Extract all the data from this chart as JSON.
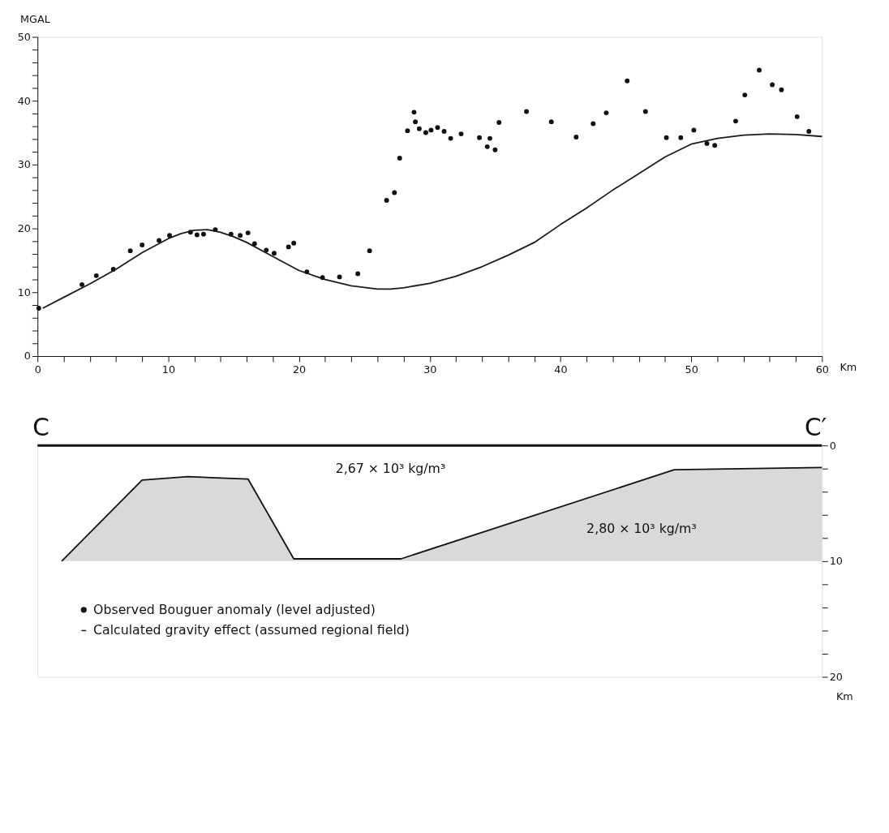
{
  "chart_data": [
    {
      "type": "scatter",
      "ylabel": "MGAL",
      "xlabel": "Km",
      "xlim": [
        0,
        60
      ],
      "xticks": [
        0,
        {
          "value": 2,
          "label": null
        },
        {
          "value": 4,
          "label": null
        },
        {
          "value": 6,
          "label": null
        },
        {
          "value": 8,
          "label": null
        },
        10,
        {
          "value": 12,
          "label": null
        },
        {
          "value": 14,
          "label": null
        },
        {
          "value": 16,
          "label": null
        },
        {
          "value": 18,
          "label": null
        },
        20,
        {
          "value": 22,
          "label": null
        },
        {
          "value": 24,
          "label": null
        },
        {
          "value": 26,
          "label": null
        },
        {
          "value": 28,
          "label": null
        },
        30,
        {
          "value": 32,
          "label": null
        },
        {
          "value": 34,
          "label": null
        },
        {
          "value": 36,
          "label": null
        },
        {
          "value": 38,
          "label": null
        },
        40,
        {
          "value": 42,
          "label": null
        },
        {
          "value": 44,
          "label": null
        },
        {
          "value": 46,
          "label": null
        },
        {
          "value": 48,
          "label": null
        },
        50,
        {
          "value": 52,
          "label": null
        },
        {
          "value": 54,
          "label": null
        },
        {
          "value": 56,
          "label": null
        },
        {
          "value": 58,
          "label": null
        },
        60
      ],
      "ylim": [
        0,
        50
      ],
      "yticks": [
        0,
        {
          "value": 2,
          "label": null
        },
        {
          "value": 4,
          "label": null
        },
        {
          "value": 6,
          "label": null
        },
        {
          "value": 8,
          "label": null
        },
        10,
        {
          "value": 12,
          "label": null
        },
        {
          "value": 14,
          "label": null
        },
        {
          "value": 16,
          "label": null
        },
        {
          "value": 18,
          "label": null
        },
        20,
        {
          "value": 22,
          "label": null
        },
        {
          "value": 24,
          "label": null
        },
        {
          "value": 26,
          "label": null
        },
        {
          "value": 28,
          "label": null
        },
        30,
        {
          "value": 32,
          "label": null
        },
        {
          "value": 34,
          "label": null
        },
        {
          "value": 36,
          "label": null
        },
        {
          "value": 38,
          "label": null
        },
        40,
        {
          "value": 42,
          "label": null
        },
        {
          "value": 44,
          "label": null
        },
        {
          "value": 46,
          "label": null
        },
        {
          "value": 48,
          "label": null
        },
        50
      ],
      "grid": false,
      "legend": "bottom left",
      "series": [
        {
          "name": "Observed Bouguer anomaly (level adjusted)",
          "marker": "circle",
          "color": "#111111",
          "x": [
            0.1,
            3.4,
            4.5,
            5.8,
            7.1,
            8.0,
            9.3,
            10.1,
            11.7,
            12.2,
            12.7,
            13.6,
            14.8,
            15.5,
            16.1,
            16.6,
            17.5,
            18.1,
            19.2,
            19.6,
            20.6,
            21.8,
            23.1,
            24.5,
            25.4,
            26.7,
            27.3,
            27.7,
            28.3,
            28.8,
            28.9,
            29.2,
            29.7,
            30.1,
            30.6,
            31.1,
            31.6,
            32.4,
            33.8,
            34.4,
            34.6,
            35.0,
            35.3,
            37.4,
            39.3,
            41.2,
            42.5,
            43.5,
            45.1,
            46.5,
            48.1,
            49.2,
            50.2,
            51.2,
            51.8,
            53.4,
            54.1,
            55.2,
            56.2,
            56.9,
            58.1,
            59.0
          ],
          "values": [
            7.5,
            11.2,
            12.6,
            13.6,
            16.5,
            17.4,
            18.1,
            18.9,
            19.4,
            19.0,
            19.1,
            19.8,
            19.1,
            18.9,
            19.3,
            17.6,
            16.6,
            16.1,
            17.1,
            17.7,
            13.2,
            12.3,
            12.4,
            12.9,
            16.5,
            24.4,
            25.6,
            31.0,
            35.3,
            38.2,
            36.7,
            35.6,
            35.0,
            35.4,
            35.8,
            35.2,
            34.1,
            34.8,
            34.2,
            32.8,
            34.1,
            32.3,
            36.6,
            38.3,
            36.7,
            34.3,
            36.4,
            38.1,
            43.1,
            38.3,
            34.2,
            34.2,
            35.4,
            33.3,
            33.0,
            36.8,
            40.9,
            44.8,
            42.5,
            41.7,
            37.5,
            35.2
          ]
        },
        {
          "name": "Calculated gravity effect (assumed regional field)",
          "type": "line",
          "marker": "none",
          "line_style": "solid",
          "color": "#1a1a1a",
          "x": [
            0.4,
            2,
            4,
            6,
            8,
            10,
            11,
            12,
            13,
            14,
            15,
            16,
            18,
            20,
            22,
            24,
            26,
            27,
            28,
            30,
            32,
            34,
            36,
            38,
            40,
            42,
            44,
            46,
            48,
            50,
            52,
            54,
            56,
            58,
            60
          ],
          "values": [
            7.5,
            9.2,
            11.3,
            13.6,
            16.2,
            18.4,
            19.2,
            19.7,
            19.8,
            19.4,
            18.7,
            17.8,
            15.6,
            13.4,
            12.0,
            11.0,
            10.5,
            10.5,
            10.7,
            11.4,
            12.5,
            14.0,
            15.8,
            17.8,
            20.6,
            23.2,
            26.0,
            28.6,
            31.2,
            33.2,
            34.1,
            34.6,
            34.8,
            34.7,
            34.4
          ]
        }
      ]
    },
    {
      "type": "line",
      "ylabel": "Km",
      "tick_labels": "y",
      "xlim": [
        0,
        60
      ],
      "ylim": [
        20,
        0
      ],
      "yticks": [
        0,
        {
          "value": 2,
          "label": null
        },
        {
          "value": 4,
          "label": null
        },
        {
          "value": 6,
          "label": null
        },
        {
          "value": 8,
          "label": null
        },
        10,
        {
          "value": 12,
          "label": null
        },
        {
          "value": 14,
          "label": null
        },
        {
          "value": 16,
          "label": null
        },
        {
          "value": 18,
          "label": null
        },
        20
      ],
      "ref_lines": [
        {
          "axis": "y",
          "value": 0,
          "color": "#111111",
          "line_style": "solid"
        }
      ],
      "annotations": [
        "C",
        "C′",
        "2,67 × 10³ kg/m³",
        "2,80 × 10³ kg/m³"
      ],
      "series": [
        {
          "color": "#111111",
          "x": [
            1.85,
            8.0,
            11.5,
            16.1,
            19.6,
            27.8,
            48.7,
            60
          ],
          "values": [
            10.0,
            3.0,
            2.7,
            2.9,
            9.8,
            9.8,
            2.1,
            1.9
          ],
          "lower": [
            10.0,
            3.0,
            2.7,
            2.9,
            9.8,
            9.8,
            2.1,
            1.9
          ],
          "upper": [
            10,
            10,
            10,
            10,
            10,
            10,
            10,
            10
          ]
        }
      ]
    }
  ]
}
